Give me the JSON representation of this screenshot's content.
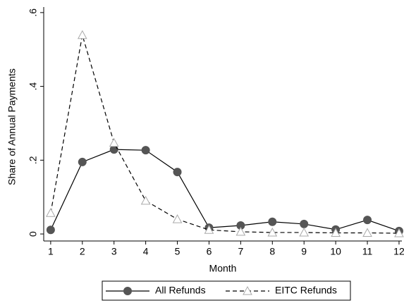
{
  "chart_data": {
    "type": "line",
    "x_label": "Month",
    "y_label": "Share of Annual Payments",
    "x": [
      1,
      2,
      3,
      4,
      5,
      6,
      7,
      8,
      9,
      10,
      11,
      12
    ],
    "series": [
      {
        "name": "All Refunds",
        "color": "#555555",
        "marker": "circle",
        "line_style": "solid",
        "values": [
          0.011,
          0.195,
          0.229,
          0.227,
          0.168,
          0.017,
          0.023,
          0.033,
          0.027,
          0.012,
          0.038,
          0.008
        ]
      },
      {
        "name": "EITC Refunds",
        "color": "#aaaaaa",
        "marker": "triangle",
        "line_style": "dashed",
        "values": [
          0.057,
          0.539,
          0.247,
          0.09,
          0.04,
          0.011,
          0.006,
          0.004,
          0.004,
          0.003,
          0.003,
          0.002
        ]
      }
    ],
    "xlim": [
      0.78,
      12.09
    ],
    "xticks": [
      1,
      2,
      3,
      4,
      5,
      6,
      7,
      8,
      9,
      10,
      11,
      12
    ],
    "ylim": [
      -0.019,
      0.615
    ],
    "yticks": [
      0,
      {
        "value": 0.2,
        "label": ".2"
      },
      {
        "value": 0.4,
        "label": ".4"
      },
      {
        "value": 0.6,
        "label": ".6"
      }
    ],
    "grid": false,
    "legend": "bottom"
  }
}
